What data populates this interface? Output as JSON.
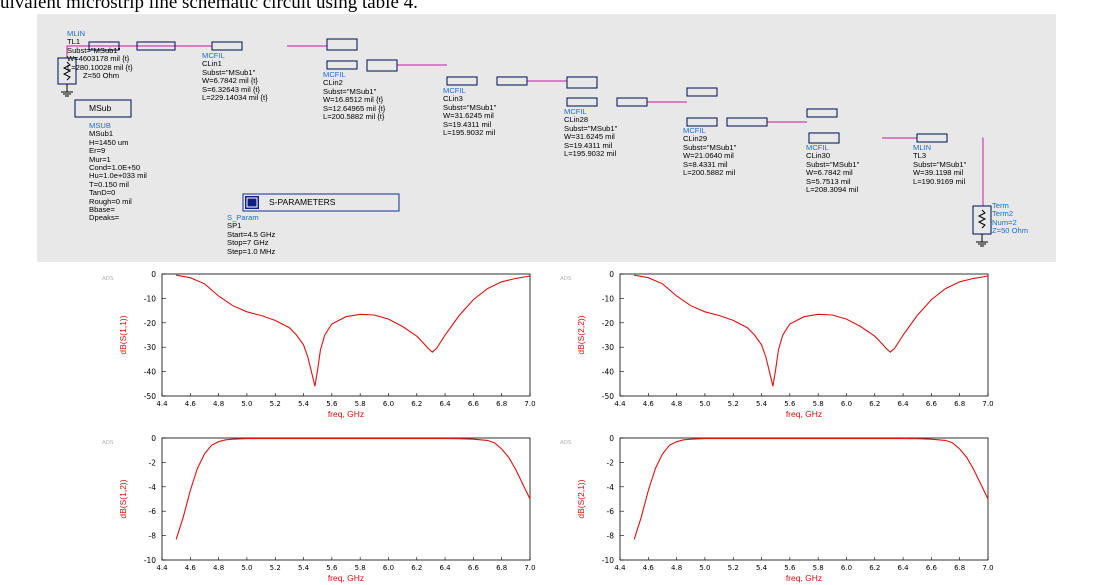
{
  "caption": "uivalent microstrip line schematic circuit using table 4.",
  "schematic": {
    "mlin_tl1": [
      "MLIN",
      "TL1",
      "Subst=\"MSub1\"",
      "W=4603178 mil {t}",
      "L=280.10028 mil {t}"
    ],
    "term1_z": "Z=50 Ohm",
    "msub_box": "MSub",
    "msub": [
      "MSUB",
      "MSub1",
      "H=1450 um",
      "Er=9",
      "Mur=1",
      "Cond=1.0E+50",
      "Hu=1.0e+033 mil",
      "T=0.150 mil",
      "TanD=0",
      "Rough=0 mil",
      "Bbase=",
      "Dpeaks="
    ],
    "clin1": [
      "MCFIL",
      "CLin1",
      "Subst=\"MSub1\"",
      "W=6.7842 mil {t}",
      "S=6.32643 mil {t}",
      "L=229.14034 mil {t}"
    ],
    "clin2": [
      "MCFIL",
      "CLin2",
      "Subst=\"MSub1\"",
      "W=16.8512 mil {t}",
      "S=12.64965 mil {t}",
      "L=200.5882 mil {t}"
    ],
    "clin3": [
      "MCFIL",
      "CLin3",
      "Subst=\"MSub1\"",
      "W=31.6245 mil",
      "S=19.4311 mil",
      "L=195.9032 mil"
    ],
    "clin28": [
      "MCFIL",
      "CLin28",
      "Subst=\"MSub1\"",
      "W=31.6245 mil",
      "S=19.4311 mil",
      "L=195.9032 mil"
    ],
    "clin29": [
      "MCFIL",
      "CLin29",
      "Subst=\"MSub1\"",
      "W=21.0640 mil",
      "S=8.4331 mil",
      "L=200.5882 mil"
    ],
    "clin30": [
      "MCFIL",
      "CLin30",
      "Subst=\"MSub1\"",
      "W=6.7842 mil",
      "S=5.7513 mil",
      "L=208.3094 mil"
    ],
    "tl3": [
      "MLIN",
      "TL3",
      "Subst=\"MSub1\"",
      "W=39.1198 mil",
      "L=190.9169 mil"
    ],
    "term2": [
      "Term",
      "Term2",
      "Num=2",
      "Z=50 Ohm"
    ],
    "sparam_title": "S-PARAMETERS",
    "sparam": [
      "S_Param",
      "SP1",
      "Start=4.5 GHz",
      "Stop=7 GHz",
      "Step=1.0 MHz"
    ],
    "colors": {
      "wire": "#d040b0",
      "label_class": "#1e6bd6",
      "background": "#e8e8e8"
    }
  },
  "ads_watermark": "ADS",
  "chart_data": [
    {
      "type": "line",
      "xlabel": "freq, GHz",
      "ylabel": "dB(S(1,1))",
      "xlim": [
        4.4,
        7.0
      ],
      "ylim": [
        -50,
        0
      ],
      "xticks": [
        "4.4",
        "4.6",
        "4.8",
        "5.0",
        "5.2",
        "5.4",
        "5.6",
        "5.8",
        "6.0",
        "6.2",
        "6.4",
        "6.6",
        "6.8",
        "7.0"
      ],
      "yticks": [
        "0",
        "-10",
        "-20",
        "-30",
        "-40",
        "-50"
      ],
      "grid": true,
      "series": [
        {
          "color": "#e01010",
          "x": [
            4.5,
            4.6,
            4.7,
            4.8,
            4.9,
            5.0,
            5.1,
            5.2,
            5.3,
            5.35,
            5.4,
            5.43,
            5.46,
            5.48,
            5.5,
            5.52,
            5.55,
            5.6,
            5.7,
            5.8,
            5.9,
            6.0,
            6.1,
            6.2,
            6.25,
            6.28,
            6.31,
            6.34,
            6.4,
            6.5,
            6.6,
            6.7,
            6.8,
            6.9,
            7.0
          ],
          "y": [
            -0.5,
            -1.5,
            -4,
            -9,
            -13,
            -15.5,
            -17,
            -19,
            -22,
            -25,
            -29,
            -34,
            -41,
            -46,
            -39,
            -31,
            -25,
            -20.5,
            -17.5,
            -16.5,
            -16.8,
            -18.5,
            -21.5,
            -25.5,
            -28.5,
            -30.5,
            -32,
            -30.5,
            -25,
            -17,
            -10.5,
            -6,
            -3.2,
            -1.8,
            -0.8
          ]
        }
      ]
    },
    {
      "type": "line",
      "xlabel": "freq, GHz",
      "ylabel": "dB(S(2,2))",
      "xlim": [
        4.4,
        7.0
      ],
      "ylim": [
        -50,
        0
      ],
      "xticks": [
        "4.4",
        "4.6",
        "4.8",
        "5.0",
        "5.2",
        "5.4",
        "5.6",
        "5.8",
        "6.0",
        "6.2",
        "6.4",
        "6.6",
        "6.8",
        "7.0"
      ],
      "yticks": [
        "0",
        "-10",
        "-20",
        "-30",
        "-40",
        "-50"
      ],
      "grid": true,
      "series": [
        {
          "color": "#e01010",
          "x": [
            4.5,
            4.6,
            4.7,
            4.8,
            4.9,
            5.0,
            5.1,
            5.2,
            5.3,
            5.35,
            5.4,
            5.43,
            5.46,
            5.48,
            5.5,
            5.52,
            5.55,
            5.6,
            5.7,
            5.8,
            5.9,
            6.0,
            6.1,
            6.2,
            6.25,
            6.28,
            6.31,
            6.34,
            6.4,
            6.5,
            6.6,
            6.7,
            6.8,
            6.9,
            7.0
          ],
          "y": [
            -0.5,
            -1.5,
            -4,
            -9,
            -13,
            -15.5,
            -17,
            -19,
            -22,
            -25,
            -29,
            -34,
            -41,
            -46,
            -39,
            -31,
            -25,
            -20.5,
            -17.5,
            -16.5,
            -16.8,
            -18.5,
            -21.5,
            -25.5,
            -28.5,
            -30.5,
            -32,
            -30.5,
            -25,
            -17,
            -10.5,
            -6,
            -3.2,
            -1.8,
            -0.8
          ]
        }
      ]
    },
    {
      "type": "line",
      "xlabel": "freq, GHz",
      "ylabel": "dB(S(1,2))",
      "xlim": [
        4.4,
        7.0
      ],
      "ylim": [
        -10,
        0
      ],
      "xticks": [
        "4.4",
        "4.6",
        "4.8",
        "5.0",
        "5.2",
        "5.4",
        "5.6",
        "5.8",
        "6.0",
        "6.2",
        "6.4",
        "6.6",
        "6.8",
        "7.0"
      ],
      "yticks": [
        "0",
        "-2",
        "-4",
        "-6",
        "-8",
        "-10"
      ],
      "grid": true,
      "series": [
        {
          "color": "#e01010",
          "x": [
            4.5,
            4.55,
            4.6,
            4.65,
            4.7,
            4.75,
            4.8,
            4.85,
            4.9,
            5.0,
            5.2,
            5.5,
            5.8,
            6.0,
            6.2,
            6.4,
            6.5,
            6.6,
            6.7,
            6.75,
            6.8,
            6.85,
            6.9,
            6.95,
            7.0
          ],
          "y": [
            -8.3,
            -6.5,
            -4.3,
            -2.5,
            -1.3,
            -0.6,
            -0.3,
            -0.15,
            -0.1,
            -0.05,
            -0.05,
            -0.05,
            -0.05,
            -0.05,
            -0.05,
            -0.05,
            -0.06,
            -0.1,
            -0.2,
            -0.4,
            -0.9,
            -1.6,
            -2.6,
            -3.8,
            -5.0
          ]
        }
      ]
    },
    {
      "type": "line",
      "xlabel": "freq, GHz",
      "ylabel": "dB(S(2,1))",
      "xlim": [
        4.4,
        7.0
      ],
      "ylim": [
        -10,
        0
      ],
      "xticks": [
        "4.4",
        "4.6",
        "4.8",
        "5.0",
        "5.2",
        "5.4",
        "5.6",
        "5.8",
        "6.0",
        "6.2",
        "6.4",
        "6.6",
        "6.8",
        "7.0"
      ],
      "yticks": [
        "0",
        "-2",
        "-4",
        "-6",
        "-8",
        "-10"
      ],
      "grid": true,
      "series": [
        {
          "color": "#e01010",
          "x": [
            4.5,
            4.55,
            4.6,
            4.65,
            4.7,
            4.75,
            4.8,
            4.85,
            4.9,
            5.0,
            5.2,
            5.5,
            5.8,
            6.0,
            6.2,
            6.4,
            6.5,
            6.6,
            6.7,
            6.75,
            6.8,
            6.85,
            6.9,
            6.95,
            7.0
          ],
          "y": [
            -8.3,
            -6.5,
            -4.3,
            -2.5,
            -1.3,
            -0.6,
            -0.3,
            -0.15,
            -0.1,
            -0.05,
            -0.05,
            -0.05,
            -0.05,
            -0.05,
            -0.05,
            -0.05,
            -0.06,
            -0.1,
            -0.2,
            -0.4,
            -0.9,
            -1.6,
            -2.6,
            -3.8,
            -5.0
          ]
        }
      ]
    }
  ]
}
